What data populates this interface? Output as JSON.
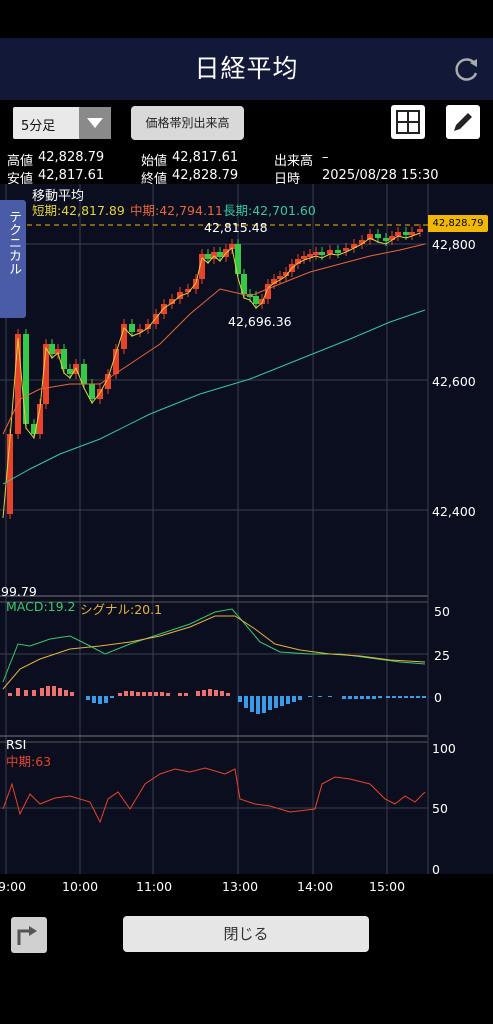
{
  "header": {
    "title": "日経平均"
  },
  "toolbar": {
    "interval": "5分足",
    "volume_button": "価格帯別出来高"
  },
  "info": {
    "high_label": "高値",
    "high": "42,828.79",
    "open_label": "始値",
    "open": "42,817.61",
    "volume_label": "出来高",
    "volume": "–",
    "low_label": "安値",
    "low": "42,817.61",
    "close_label": "終値",
    "close": "42,828.79",
    "datetime_label": "日時",
    "datetime": "2025/08/28 15:30"
  },
  "tab": {
    "technical": "テクニカル"
  },
  "ma": {
    "title": "移動平均",
    "short": "短期:42,817.89",
    "mid": "中期:42,794.11",
    "long": "長期:42,701.60"
  },
  "annotations": {
    "peak": "42,815.48",
    "trough": "42,696.36",
    "low_edge": "99.79",
    "last_price": "42,828.79"
  },
  "price_axis": [
    "42,800",
    "42,600",
    "42,400"
  ],
  "macd": {
    "macd": "MACD:19.2",
    "signal": "シグナル:20.1",
    "axis": [
      "50",
      "25",
      "0"
    ]
  },
  "rsi": {
    "title": "RSI",
    "mid": "中期:63",
    "axis": [
      "100",
      "50",
      "0"
    ]
  },
  "time_axis": [
    "9:00",
    "10:00",
    "11:00",
    "13:00",
    "14:00",
    "15:00"
  ],
  "bottom": {
    "close_label": "閉じる"
  },
  "colors": {
    "up": "#e8432a",
    "down": "#35c94a",
    "short_ma": "#e6d23a",
    "mid_ma": "#e8663a",
    "long_ma": "#35c9a0",
    "macd": "#35c970",
    "signal": "#e6b43a",
    "rsi": "#e8432a",
    "hist_pos": "#f07070",
    "hist_neg": "#3a9be8"
  }
}
